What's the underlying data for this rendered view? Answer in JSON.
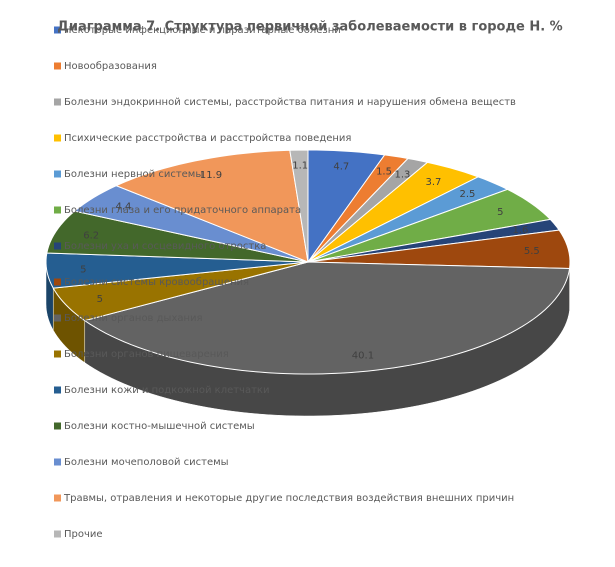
{
  "chart_data": {
    "type": "pie",
    "title": "Диаграмма 7. Структура первичной заболеваемости  в городе Н. %",
    "categories": [
      "Некоторые инфекционные и паразитарные болезни",
      "Новообразования",
      "Болезни эндокринной системы, расстройства питания и нарушения обмена веществ",
      "Психические расстройства и расстройства поведения",
      "Болезни нервной системы",
      "Болезни глаза и его придаточного аппарата",
      "Болезни уха и сосцевидного отростка",
      "Болезни системы кровообращения",
      "Болезни органов дыхания",
      "Болезни органов пищеварения",
      "Болезни кожи и подкожной клетчатки",
      "Болезни костно-мышечной системы",
      "Болезни мочеполовой системы",
      "Травмы, отравления и некоторые другие последствия воздействия внешних причин",
      "Прочие"
    ],
    "values": [
      4.7,
      1.5,
      1.3,
      3.7,
      2.5,
      5,
      1.6,
      5.5,
      40.1,
      5,
      5,
      6.2,
      4.4,
      11.9,
      1.1
    ],
    "colors": [
      "#4472c4",
      "#ed7d31",
      "#a5a5a5",
      "#ffc000",
      "#5b9bd5",
      "#70ad47",
      "#264478",
      "#9e480e",
      "#636363",
      "#997300",
      "#255e91",
      "#43682b",
      "#698ed0",
      "#f1975a",
      "#b7b7b7"
    ],
    "legend": "left"
  }
}
